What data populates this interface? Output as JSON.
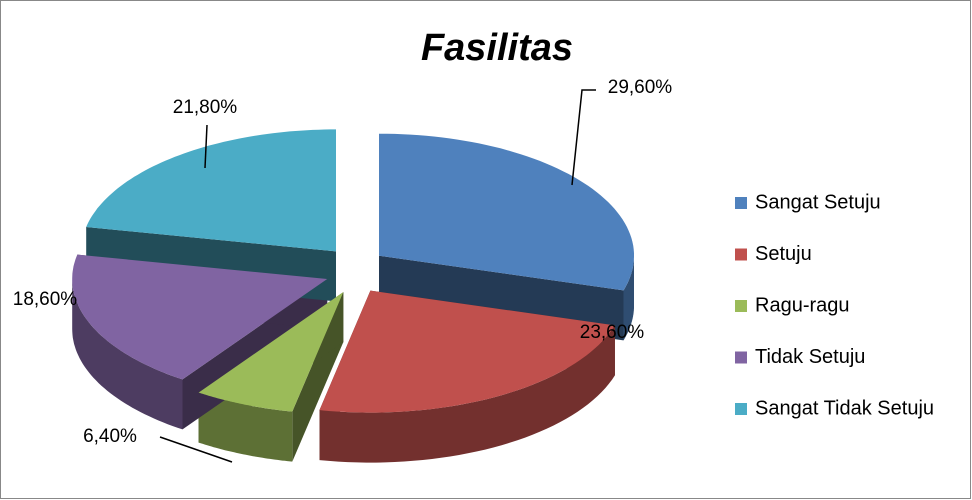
{
  "chart_data": {
    "type": "pie",
    "title": "Fasilitas",
    "categories": [
      "Sangat Setuju",
      "Setuju",
      "Ragu-ragu",
      "Tidak Setuju",
      "Sangat Tidak Setuju"
    ],
    "values": [
      29.6,
      23.6,
      6.4,
      18.6,
      21.8
    ],
    "value_labels": [
      "29,60%",
      "23,60%",
      "6,40%",
      "18,60%",
      "21,80%"
    ],
    "colors": [
      "#4f81bd",
      "#c0504d",
      "#9bbb59",
      "#8064a2",
      "#4bacc6"
    ],
    "legend": "right"
  }
}
